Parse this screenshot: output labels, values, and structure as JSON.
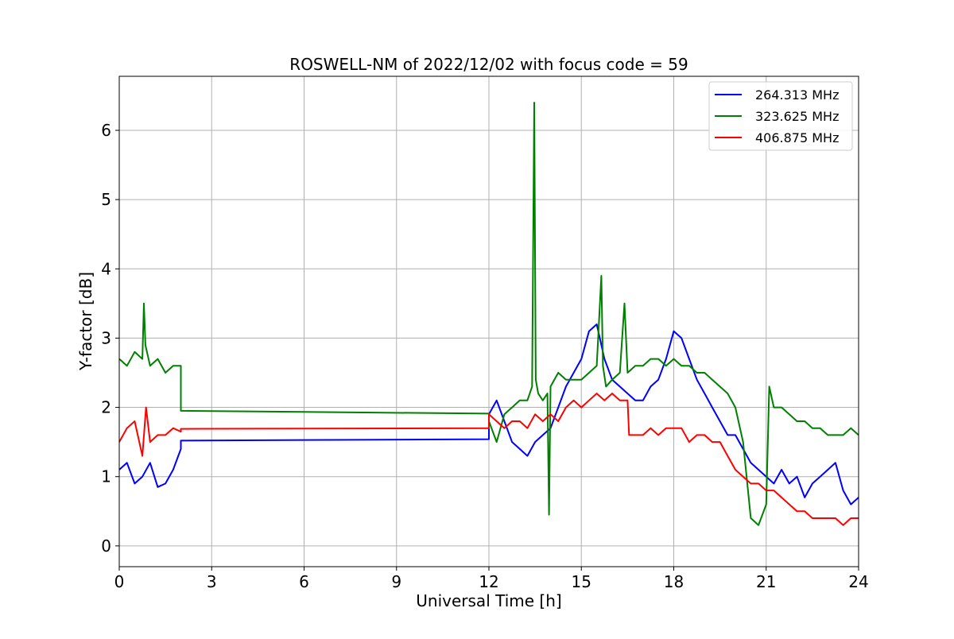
{
  "chart_data": {
    "type": "line",
    "title": "ROSWELL-NM of 2022/12/02 with focus code = 59",
    "xlabel": "Universal Time [h]",
    "ylabel": "Y-factor [dB]",
    "xlim": [
      0,
      24
    ],
    "ylim": [
      -0.3,
      6.78
    ],
    "xticks": [
      0,
      3,
      6,
      9,
      12,
      15,
      18,
      21,
      24
    ],
    "xtick_labels": [
      "0",
      "3",
      "6",
      "9",
      "12",
      "15",
      "18",
      "21",
      "24"
    ],
    "yticks": [
      0,
      1,
      2,
      3,
      4,
      5,
      6
    ],
    "ytick_labels": [
      "0",
      "1",
      "2",
      "3",
      "4",
      "5",
      "6"
    ],
    "grid": true,
    "legend_position": "top-right",
    "series": [
      {
        "name": "264.313 MHz",
        "color": "#0000ff",
        "x": [
          0.0,
          0.25,
          0.5,
          0.75,
          1.0,
          1.25,
          1.5,
          1.75,
          2.0,
          2.0,
          12.0,
          12.0,
          12.25,
          12.5,
          12.75,
          13.0,
          13.25,
          13.5,
          13.75,
          14.0,
          14.25,
          14.5,
          14.75,
          15.0,
          15.25,
          15.5,
          15.75,
          16.0,
          16.25,
          16.5,
          16.75,
          17.0,
          17.25,
          17.5,
          17.75,
          18.0,
          18.25,
          18.5,
          18.75,
          19.0,
          19.25,
          19.5,
          19.75,
          20.0,
          20.25,
          20.5,
          20.75,
          21.0,
          21.25,
          21.5,
          21.75,
          22.0,
          22.25,
          22.5,
          22.75,
          23.0,
          23.25,
          23.5,
          23.75,
          24.0
        ],
        "values": [
          1.1,
          1.2,
          0.9,
          1.0,
          1.2,
          0.85,
          0.9,
          1.1,
          1.4,
          1.52,
          1.54,
          1.9,
          2.1,
          1.8,
          1.5,
          1.4,
          1.3,
          1.5,
          1.6,
          1.7,
          2.0,
          2.3,
          2.5,
          2.7,
          3.1,
          3.2,
          2.7,
          2.4,
          2.3,
          2.2,
          2.1,
          2.1,
          2.3,
          2.4,
          2.7,
          3.1,
          3.0,
          2.7,
          2.4,
          2.2,
          2.0,
          1.8,
          1.6,
          1.6,
          1.4,
          1.2,
          1.1,
          1.0,
          0.9,
          1.1,
          0.9,
          1.0,
          0.7,
          0.9,
          1.0,
          1.1,
          1.2,
          0.8,
          0.6,
          0.7
        ]
      },
      {
        "name": "323.625 MHz",
        "color": "#008000",
        "x": [
          0.0,
          0.25,
          0.5,
          0.75,
          0.8,
          0.85,
          1.0,
          1.25,
          1.5,
          1.75,
          2.0,
          2.0,
          12.0,
          12.0,
          12.25,
          12.5,
          12.75,
          13.0,
          13.25,
          13.4,
          13.47,
          13.52,
          13.6,
          13.75,
          13.9,
          13.95,
          14.0,
          14.25,
          14.5,
          14.75,
          15.0,
          15.25,
          15.5,
          15.65,
          15.7,
          15.8,
          16.0,
          16.25,
          16.4,
          16.5,
          16.75,
          17.0,
          17.25,
          17.5,
          17.75,
          18.0,
          18.25,
          18.5,
          18.75,
          19.0,
          19.25,
          19.5,
          19.75,
          20.0,
          20.25,
          20.5,
          20.75,
          21.0,
          21.1,
          21.25,
          21.5,
          21.75,
          22.0,
          22.25,
          22.5,
          22.75,
          23.0,
          23.25,
          23.5,
          23.75,
          24.0
        ],
        "values": [
          2.7,
          2.6,
          2.8,
          2.7,
          3.5,
          2.9,
          2.6,
          2.7,
          2.5,
          2.6,
          2.6,
          1.95,
          1.91,
          1.8,
          1.5,
          1.9,
          2.0,
          2.1,
          2.1,
          2.3,
          6.4,
          2.4,
          2.2,
          2.1,
          2.2,
          0.45,
          2.3,
          2.5,
          2.4,
          2.4,
          2.4,
          2.5,
          2.6,
          3.9,
          2.6,
          2.3,
          2.4,
          2.5,
          3.5,
          2.5,
          2.6,
          2.6,
          2.7,
          2.7,
          2.6,
          2.7,
          2.6,
          2.6,
          2.5,
          2.5,
          2.4,
          2.3,
          2.2,
          2.0,
          1.5,
          0.4,
          0.3,
          0.6,
          2.3,
          2.0,
          2.0,
          1.9,
          1.8,
          1.8,
          1.7,
          1.7,
          1.6,
          1.6,
          1.6,
          1.7,
          1.6
        ]
      },
      {
        "name": "406.875 MHz",
        "color": "#ff0000",
        "x": [
          0.0,
          0.25,
          0.5,
          0.75,
          0.87,
          1.0,
          1.25,
          1.5,
          1.75,
          2.0,
          2.0,
          12.0,
          12.0,
          12.25,
          12.5,
          12.75,
          13.0,
          13.25,
          13.5,
          13.75,
          14.0,
          14.25,
          14.5,
          14.75,
          15.0,
          15.25,
          15.5,
          15.75,
          16.0,
          16.25,
          16.5,
          16.55,
          16.75,
          17.0,
          17.25,
          17.5,
          17.75,
          18.0,
          18.25,
          18.5,
          18.75,
          19.0,
          19.25,
          19.5,
          19.75,
          20.0,
          20.25,
          20.5,
          20.75,
          21.0,
          21.25,
          21.5,
          21.75,
          22.0,
          22.25,
          22.5,
          22.75,
          23.0,
          23.25,
          23.5,
          23.75,
          24.0
        ],
        "values": [
          1.5,
          1.7,
          1.8,
          1.3,
          2.0,
          1.5,
          1.6,
          1.6,
          1.7,
          1.65,
          1.69,
          1.7,
          1.9,
          1.8,
          1.7,
          1.8,
          1.8,
          1.7,
          1.9,
          1.8,
          1.9,
          1.8,
          2.0,
          2.1,
          2.0,
          2.1,
          2.2,
          2.1,
          2.2,
          2.1,
          2.1,
          1.6,
          1.6,
          1.6,
          1.7,
          1.6,
          1.7,
          1.7,
          1.7,
          1.5,
          1.6,
          1.6,
          1.5,
          1.5,
          1.3,
          1.1,
          1.0,
          0.9,
          0.9,
          0.8,
          0.8,
          0.7,
          0.6,
          0.5,
          0.5,
          0.4,
          0.4,
          0.4,
          0.4,
          0.3,
          0.4,
          0.4
        ]
      }
    ]
  }
}
